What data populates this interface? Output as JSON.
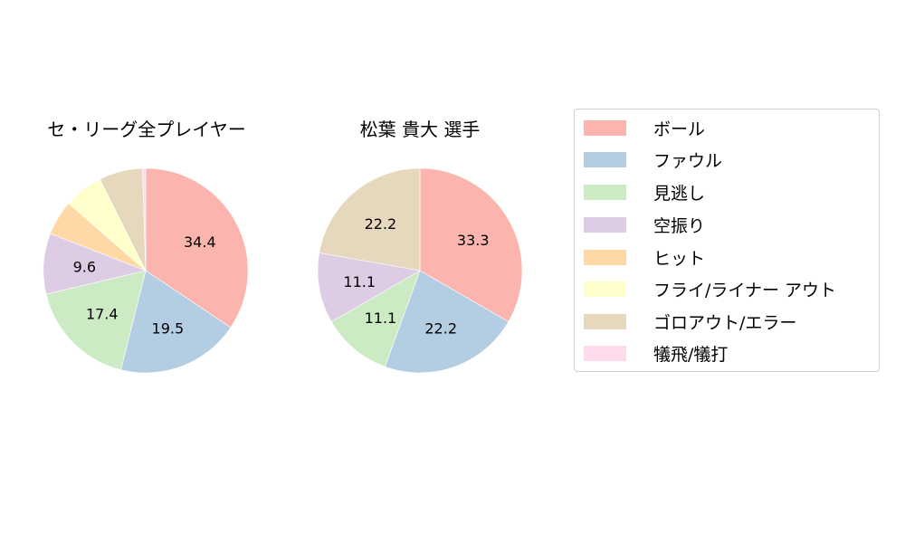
{
  "chart_data": [
    {
      "type": "pie",
      "title": "セ・リーグ全プレイヤー",
      "categories": [
        "ボール",
        "ファウル",
        "見逃し",
        "空振り",
        "ヒット",
        "フライ/ライナー アウト",
        "ゴロアウト/エラー",
        "犠飛/犠打"
      ],
      "values": [
        34.4,
        19.5,
        17.4,
        9.6,
        5.5,
        6.2,
        6.9,
        0.5
      ],
      "labels_shown": [
        "34.4",
        "19.5",
        "17.4",
        "9.6",
        "",
        "",
        "",
        ""
      ],
      "start_angle": 90,
      "direction": "clockwise"
    },
    {
      "type": "pie",
      "title": "松葉 貴大  選手",
      "categories": [
        "ボール",
        "ファウル",
        "見逃し",
        "空振り",
        "ヒット",
        "フライ/ライナー アウト",
        "ゴロアウト/エラー",
        "犠飛/犠打"
      ],
      "values": [
        33.3,
        22.2,
        11.1,
        11.1,
        0,
        0,
        22.2,
        0
      ],
      "labels_shown": [
        "33.3",
        "22.2",
        "11.1",
        "11.1",
        "",
        "",
        "22.2",
        ""
      ],
      "start_angle": 90,
      "direction": "clockwise"
    }
  ],
  "titles": {
    "left": "セ・リーグ全プレイヤー",
    "right": "松葉 貴大  選手"
  },
  "legend": {
    "items": [
      {
        "label": "ボール",
        "color": "#fbb4ae"
      },
      {
        "label": "ファウル",
        "color": "#b3cde3"
      },
      {
        "label": "見逃し",
        "color": "#ccebc5"
      },
      {
        "label": "空振り",
        "color": "#decbe4"
      },
      {
        "label": "ヒット",
        "color": "#fed9a6"
      },
      {
        "label": "フライ/ライナー アウト",
        "color": "#ffffcc"
      },
      {
        "label": "ゴロアウト/エラー",
        "color": "#e5d8bd"
      },
      {
        "label": "犠飛/犠打",
        "color": "#fddaec"
      }
    ]
  }
}
